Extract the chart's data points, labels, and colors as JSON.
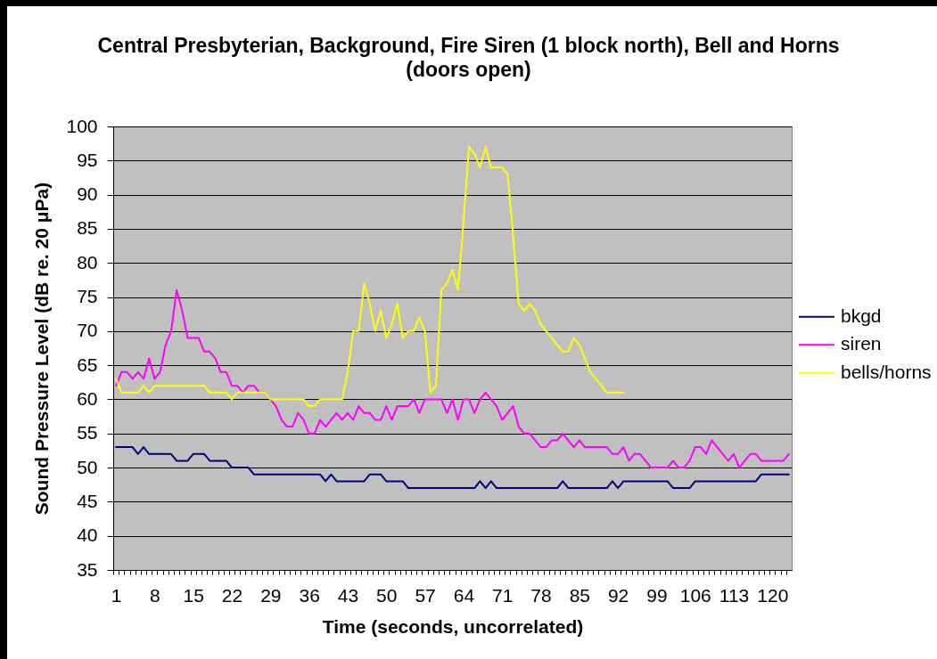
{
  "chart_data": {
    "type": "line",
    "title": "Central Presbyterian, Background, Fire Siren (1 block north), Bell and Horns (doors open)",
    "xlabel": "Time (seconds, uncorrelated)",
    "ylabel": "Sound Pressure Level (dB re. 20 μPa)",
    "categories": [
      "1",
      null,
      null,
      null,
      null,
      null,
      null,
      "8",
      null,
      null,
      null,
      null,
      null,
      null,
      "15",
      null,
      null,
      null,
      null,
      null,
      null,
      "22",
      null,
      null,
      null,
      null,
      null,
      null,
      "29",
      null,
      null,
      null,
      null,
      null,
      null,
      "36",
      null,
      null,
      null,
      null,
      null,
      null,
      "43",
      null,
      null,
      null,
      null,
      null,
      null,
      "50",
      null,
      null,
      null,
      null,
      null,
      null,
      "57",
      null,
      null,
      null,
      null,
      null,
      null,
      "64",
      null,
      null,
      null,
      null,
      null,
      null,
      "71",
      null,
      null,
      null,
      null,
      null,
      null,
      "78",
      null,
      null,
      null,
      null,
      null,
      null,
      "85",
      null,
      null,
      null,
      null,
      null,
      null,
      "92",
      null,
      null,
      null,
      null,
      null,
      null,
      "99",
      null,
      null,
      null,
      null,
      null,
      null,
      "106",
      null,
      null,
      null,
      null,
      null,
      null,
      "113",
      null,
      null,
      null,
      null,
      null,
      null,
      "120",
      null,
      null,
      null
    ],
    "series": [
      {
        "name": "bkgd",
        "color": "#000080",
        "values": [
          53,
          53,
          53,
          53,
          52,
          53,
          52,
          52,
          52,
          52,
          52,
          51,
          51,
          51,
          52,
          52,
          52,
          51,
          51,
          51,
          51,
          50,
          50,
          50,
          50,
          49,
          49,
          49,
          49,
          49,
          49,
          49,
          49,
          49,
          49,
          49,
          49,
          49,
          48,
          49,
          48,
          48,
          48,
          48,
          48,
          48,
          49,
          49,
          49,
          48,
          48,
          48,
          48,
          47,
          47,
          47,
          47,
          47,
          47,
          47,
          47,
          47,
          47,
          47,
          47,
          47,
          48,
          47,
          48,
          47,
          47,
          47,
          47,
          47,
          47,
          47,
          47,
          47,
          47,
          47,
          47,
          48,
          47,
          47,
          47,
          47,
          47,
          47,
          47,
          47,
          48,
          47,
          48,
          48,
          48,
          48,
          48,
          48,
          48,
          48,
          48,
          47,
          47,
          47,
          47,
          48,
          48,
          48,
          48,
          48,
          48,
          48,
          48,
          48,
          48,
          48,
          48,
          49,
          49,
          49,
          49,
          49,
          49
        ]
      },
      {
        "name": "siren",
        "color": "#ff00ff",
        "values": [
          62,
          64,
          64,
          63,
          64,
          63,
          66,
          63,
          64,
          68,
          70,
          76,
          73,
          69,
          69,
          69,
          67,
          67,
          66,
          64,
          64,
          62,
          62,
          61,
          62,
          62,
          61,
          61,
          60,
          59,
          57,
          56,
          56,
          58,
          57,
          55,
          55,
          57,
          56,
          57,
          58,
          57,
          58,
          57,
          59,
          58,
          58,
          57,
          57,
          59,
          57,
          59,
          59,
          59,
          60,
          58,
          60,
          60,
          60,
          60,
          58,
          60,
          57,
          60,
          60,
          58,
          60,
          61,
          60,
          59,
          57,
          58,
          59,
          56,
          55,
          55,
          54,
          53,
          53,
          54,
          54,
          55,
          54,
          53,
          54,
          53,
          53,
          53,
          53,
          53,
          52,
          52,
          53,
          51,
          52,
          52,
          51,
          50,
          50,
          50,
          50,
          51,
          50,
          50,
          51,
          53,
          53,
          52,
          54,
          53,
          52,
          51,
          52,
          50,
          51,
          52,
          52,
          51,
          51,
          51,
          51,
          51,
          52
        ]
      },
      {
        "name": "bells/horns",
        "color": "#ffff00",
        "values": [
          63,
          61,
          61,
          61,
          61,
          62,
          61,
          62,
          62,
          62,
          62,
          62,
          62,
          62,
          62,
          62,
          62,
          61,
          61,
          61,
          61,
          60,
          61,
          61,
          61,
          61,
          61,
          61,
          60,
          60,
          60,
          60,
          60,
          60,
          60,
          59,
          59,
          60,
          60,
          60,
          60,
          60,
          64,
          70,
          70,
          77,
          74,
          70,
          73,
          69,
          71,
          74,
          69,
          70,
          70,
          72,
          70,
          61,
          62,
          76,
          77,
          79,
          76,
          86,
          97,
          96,
          94,
          97,
          94,
          94,
          94,
          93,
          84,
          74,
          73,
          74,
          73,
          71,
          70,
          69,
          68,
          67,
          67,
          69,
          68,
          66,
          64,
          63,
          62,
          61,
          61,
          61,
          61,
          null,
          null,
          null,
          null,
          null,
          null,
          null,
          null,
          null,
          null,
          null,
          null,
          null,
          null,
          null,
          null,
          null,
          null,
          null,
          null,
          null,
          null,
          null,
          null,
          null,
          null,
          null,
          null,
          null,
          null
        ]
      }
    ],
    "ylim": [
      35,
      100
    ],
    "yticks": [
      35,
      40,
      45,
      50,
      55,
      60,
      65,
      70,
      75,
      80,
      85,
      90,
      95,
      100
    ],
    "grid": "y",
    "legend": "right"
  }
}
